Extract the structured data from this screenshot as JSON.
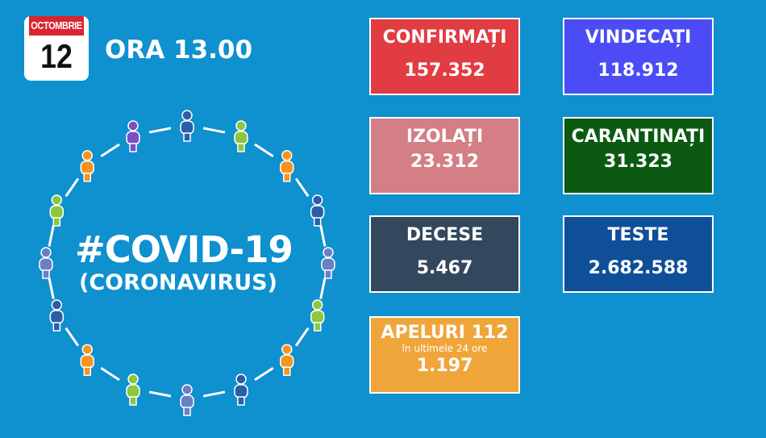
{
  "date": {
    "month": "OCTOMBRIE",
    "day": "12"
  },
  "time": "ORA 13.00",
  "title": "#COVID-19",
  "subtitle": "(CORONAVIRUS)",
  "stats": [
    {
      "label": "CONFIRMAȚI",
      "value": "157.352",
      "color": "#e13c42"
    },
    {
      "label": "VINDECAȚI",
      "value": "118.912",
      "color": "#4b4cf5"
    },
    {
      "label": "IZOLAȚI",
      "value": "23.312",
      "color": "#d37f85"
    },
    {
      "label": "CARANTINAȚI",
      "value": "31.323",
      "color": "#0c5a12"
    },
    {
      "label": "DECESE",
      "value": "5.467",
      "color": "#33475d"
    },
    {
      "label": "TESTE",
      "value": "2.682.588",
      "color": "#0e4f98"
    },
    {
      "label": "APELURI 112",
      "sublabel": "în ultimele 24 ore",
      "value": "1.197",
      "color": "#f0a53a"
    }
  ],
  "figure_colors": [
    "#2a5fa8",
    "#8dc63f",
    "#f7941d",
    "#2a5fa8",
    "#6b7fc4",
    "#8dc63f",
    "#f7941d",
    "#2a5fa8",
    "#6b7fc4",
    "#8dc63f",
    "#f7941d",
    "#2a5fa8",
    "#6b7fc4",
    "#8dc63f",
    "#f7941d",
    "#7b4fc4"
  ]
}
